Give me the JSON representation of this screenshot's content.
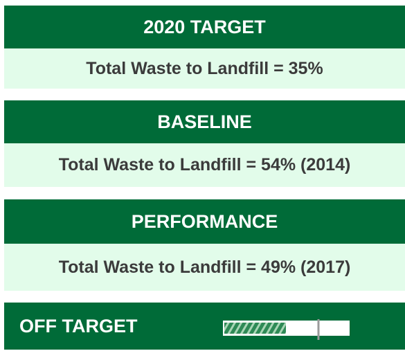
{
  "sections": [
    {
      "heading": "2020 TARGET",
      "text": "Total Waste to Landfill = 35%"
    },
    {
      "heading": "BASELINE",
      "text": "Total Waste to Landfill = 54% (2014)"
    },
    {
      "heading": "PERFORMANCE",
      "text": "Total Waste to Landfill = 49% (2017)"
    }
  ],
  "status": "OFF TARGET"
}
